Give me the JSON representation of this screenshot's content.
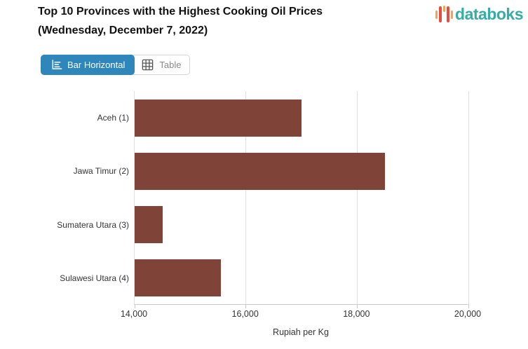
{
  "header": {
    "title_line1": "Top 10 Provinces with the Highest Cooking Oil Prices",
    "title_line2": "(Wednesday, December 7, 2022)",
    "logo_text": "databoks"
  },
  "toolbar": {
    "bar_horizontal_label": "Bar Horizontal",
    "table_label": "Table"
  },
  "chart_data": {
    "type": "bar",
    "orientation": "horizontal",
    "title": "Top 10 Provinces with the Highest Cooking Oil Prices (Wednesday, December 7, 2022)",
    "categories": [
      "Aceh (1)",
      "Jawa Timur (2)",
      "Sumatera Utara (3)",
      "Sulawesi Utara (4)"
    ],
    "values": [
      17000,
      18500,
      14500,
      15550
    ],
    "xlabel": "Rupiah per Kg",
    "xlim": [
      14000,
      20000
    ],
    "xticks": [
      14000,
      16000,
      18000,
      20000
    ],
    "xtick_labels": [
      "14,000",
      "16,000",
      "18,000",
      "20,000"
    ],
    "bar_color": "#7F4338",
    "grid": true,
    "legend": "none"
  },
  "colors": {
    "accent_blue": "#2E86BB",
    "bar": "#7F4338",
    "logo_teal": "#35ADA6",
    "logo_orange": "#F5A14E",
    "logo_red": "#E94C3F",
    "grid_line": "#E0E0E0",
    "axis_line": "#C9C9C9",
    "title_text": "#111111",
    "label_text": "#333333"
  }
}
